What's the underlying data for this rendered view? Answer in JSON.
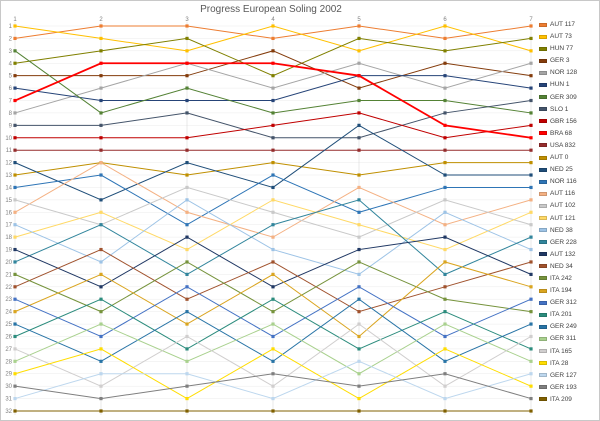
{
  "title": "Progress European Soling 2002",
  "chart_data": {
    "type": "line",
    "title": "Progress European Soling 2002",
    "x": [
      1,
      2,
      3,
      4,
      5,
      6,
      7
    ],
    "xlabel": "",
    "ylabel": "",
    "ylim": [
      1,
      32
    ],
    "y_inverted": true,
    "grid": true,
    "legend_position": "right",
    "series": [
      {
        "name": "AUT 117",
        "color": "#ED7D31",
        "values": [
          2,
          1,
          1,
          2,
          1,
          2,
          1
        ]
      },
      {
        "name": "AUT 73",
        "color": "#FFC000",
        "values": [
          1,
          2,
          3,
          1,
          3,
          1,
          3
        ]
      },
      {
        "name": "HUN 77",
        "color": "#808000",
        "values": [
          4,
          3,
          2,
          5,
          2,
          3,
          2
        ]
      },
      {
        "name": "GER 3",
        "color": "#843C0C",
        "values": [
          5,
          5,
          5,
          3,
          6,
          4,
          5
        ]
      },
      {
        "name": "NOR 128",
        "color": "#A5A5A5",
        "values": [
          8,
          6,
          4,
          6,
          4,
          6,
          4
        ]
      },
      {
        "name": "HUN 1",
        "color": "#264478",
        "values": [
          6,
          7,
          7,
          7,
          5,
          5,
          6
        ]
      },
      {
        "name": "GER 309",
        "color": "#548235",
        "values": [
          3,
          8,
          6,
          8,
          7,
          7,
          8
        ]
      },
      {
        "name": "SLO 1",
        "color": "#44546A",
        "values": [
          9,
          9,
          8,
          10,
          10,
          8,
          7
        ]
      },
      {
        "name": "GBR 156",
        "color": "#C00000",
        "values": [
          10,
          10,
          10,
          9,
          8,
          10,
          9
        ]
      },
      {
        "name": "BRA 68",
        "color": "#FF0000",
        "width": 1.8,
        "values": [
          7,
          4,
          4,
          4,
          5,
          9,
          10
        ]
      },
      {
        "name": "USA 832",
        "color": "#952D2D",
        "values": [
          11,
          11,
          11,
          11,
          11,
          11,
          11
        ]
      },
      {
        "name": "AUT 0",
        "color": "#BF8F00",
        "values": [
          13,
          12,
          13,
          12,
          13,
          12,
          12
        ]
      },
      {
        "name": "NED 25",
        "color": "#1F4E79",
        "values": [
          12,
          15,
          12,
          14,
          9,
          13,
          13
        ]
      },
      {
        "name": "NOR 116",
        "color": "#2E75B6",
        "values": [
          14,
          13,
          17,
          13,
          16,
          14,
          14
        ]
      },
      {
        "name": "AUT 116",
        "color": "#F4B183",
        "values": [
          16,
          12,
          16,
          18,
          14,
          17,
          15
        ]
      },
      {
        "name": "AUT 102",
        "color": "#C9C9C9",
        "values": [
          15,
          17,
          14,
          16,
          18,
          15,
          17
        ]
      },
      {
        "name": "AUT 121",
        "color": "#FFD966",
        "values": [
          18,
          16,
          19,
          15,
          17,
          19,
          16
        ]
      },
      {
        "name": "NED 38",
        "color": "#9DC3E6",
        "values": [
          17,
          20,
          15,
          19,
          21,
          16,
          19
        ]
      },
      {
        "name": "GER 228",
        "color": "#31859C",
        "values": [
          20,
          17,
          21,
          17,
          15,
          21,
          18
        ]
      },
      {
        "name": "AUT 132",
        "color": "#203864",
        "values": [
          19,
          22,
          18,
          22,
          19,
          18,
          21
        ]
      },
      {
        "name": "NED 34",
        "color": "#A0522D",
        "values": [
          22,
          19,
          23,
          20,
          24,
          22,
          20
        ]
      },
      {
        "name": "ITA 242",
        "color": "#76933C",
        "values": [
          21,
          24,
          20,
          24,
          20,
          23,
          24
        ]
      },
      {
        "name": "ITA 194",
        "color": "#DAA520",
        "values": [
          24,
          21,
          25,
          21,
          26,
          20,
          22
        ]
      },
      {
        "name": "GER 312",
        "color": "#4472C4",
        "values": [
          23,
          26,
          22,
          26,
          22,
          26,
          23
        ]
      },
      {
        "name": "ITA 201",
        "color": "#2C8C7D",
        "values": [
          26,
          23,
          27,
          23,
          27,
          24,
          27
        ]
      },
      {
        "name": "GER 249",
        "color": "#2874A6",
        "values": [
          25,
          28,
          24,
          28,
          23,
          28,
          25
        ]
      },
      {
        "name": "GER 311",
        "color": "#A9D18E",
        "values": [
          28,
          25,
          28,
          25,
          29,
          25,
          28
        ]
      },
      {
        "name": "ITA 165",
        "color": "#D0CECE",
        "values": [
          27,
          30,
          26,
          30,
          25,
          30,
          26
        ]
      },
      {
        "name": "ITA 28",
        "color": "#FFDD00",
        "values": [
          29,
          27,
          31,
          27,
          31,
          27,
          30
        ]
      },
      {
        "name": "GER 127",
        "color": "#BDD7EE",
        "values": [
          31,
          29,
          29,
          31,
          28,
          31,
          29
        ]
      },
      {
        "name": "GER 193",
        "color": "#7F7F7F",
        "values": [
          30,
          31,
          30,
          29,
          30,
          29,
          31
        ]
      },
      {
        "name": "ITA 209",
        "color": "#806000",
        "values": [
          32,
          32,
          32,
          32,
          32,
          32,
          32
        ]
      }
    ]
  }
}
